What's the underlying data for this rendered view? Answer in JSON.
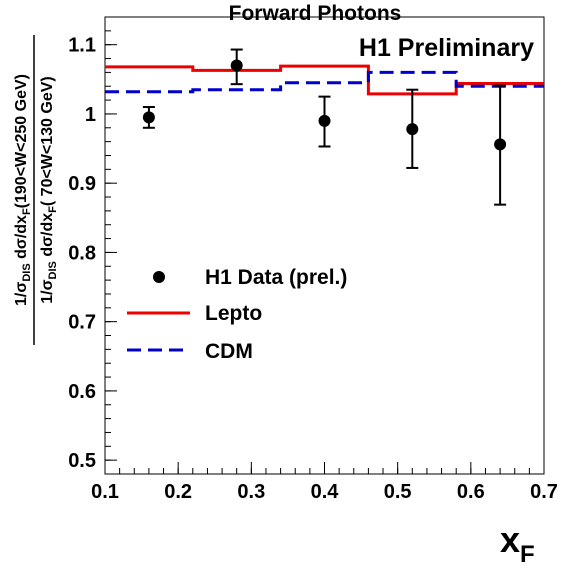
{
  "chart_data": {
    "type": "line",
    "title": "Forward Photons",
    "annotation": "H1 Preliminary",
    "xlabel_main": "x",
    "xlabel_sub": "F",
    "ylabel": {
      "num_prefix": "1/σ",
      "num_sub1": "DIS",
      "num_mid": " dσ/dx",
      "num_sub2": "F",
      "num_suffix": "(190<W<250 GeV)",
      "den_prefix": "1/σ",
      "den_sub1": "DIS",
      "den_mid": " dσ/dx",
      "den_sub2": "F",
      "den_suffix": "( 70<W<130 GeV)"
    },
    "xlim": [
      0.1,
      0.7
    ],
    "ylim": [
      0.48,
      1.14
    ],
    "x_ticks": [
      "0.1",
      "0.2",
      "0.3",
      "0.4",
      "0.5",
      "0.6",
      "0.7"
    ],
    "y_ticks": [
      "0.5",
      "0.6",
      "0.7",
      "0.8",
      "0.9",
      "1",
      "1.1"
    ],
    "x_tick_values": [
      0.1,
      0.2,
      0.3,
      0.4,
      0.5,
      0.6,
      0.7
    ],
    "y_tick_values": [
      0.5,
      0.6,
      0.7,
      0.8,
      0.9,
      1.0,
      1.1
    ],
    "legend": [
      "H1 Data (prel.)",
      "Lepto",
      "CDM"
    ],
    "legend_placement": "center-left",
    "data_points": [
      {
        "x": 0.16,
        "y": 0.995,
        "lo": 0.98,
        "hi": 1.01
      },
      {
        "x": 0.28,
        "y": 1.07,
        "lo": 1.043,
        "hi": 1.093
      },
      {
        "x": 0.4,
        "y": 0.99,
        "lo": 0.953,
        "hi": 1.025
      },
      {
        "x": 0.52,
        "y": 0.978,
        "lo": 0.922,
        "hi": 1.035
      },
      {
        "x": 0.64,
        "y": 0.956,
        "lo": 0.869,
        "hi": 1.041
      }
    ],
    "series": [
      {
        "name": "Lepto",
        "color": "#ee0000",
        "style": "solid",
        "bins": [
          [
            0.1,
            0.22,
            1.068
          ],
          [
            0.22,
            0.34,
            1.063
          ],
          [
            0.34,
            0.46,
            1.069
          ],
          [
            0.46,
            0.58,
            1.029
          ],
          [
            0.58,
            0.7,
            1.044
          ]
        ]
      },
      {
        "name": "CDM",
        "color": "#0000cc",
        "style": "dashed",
        "bins": [
          [
            0.1,
            0.22,
            1.032
          ],
          [
            0.22,
            0.34,
            1.035
          ],
          [
            0.34,
            0.46,
            1.045
          ],
          [
            0.46,
            0.58,
            1.06
          ],
          [
            0.58,
            0.7,
            1.04
          ]
        ]
      }
    ],
    "grid": false
  }
}
